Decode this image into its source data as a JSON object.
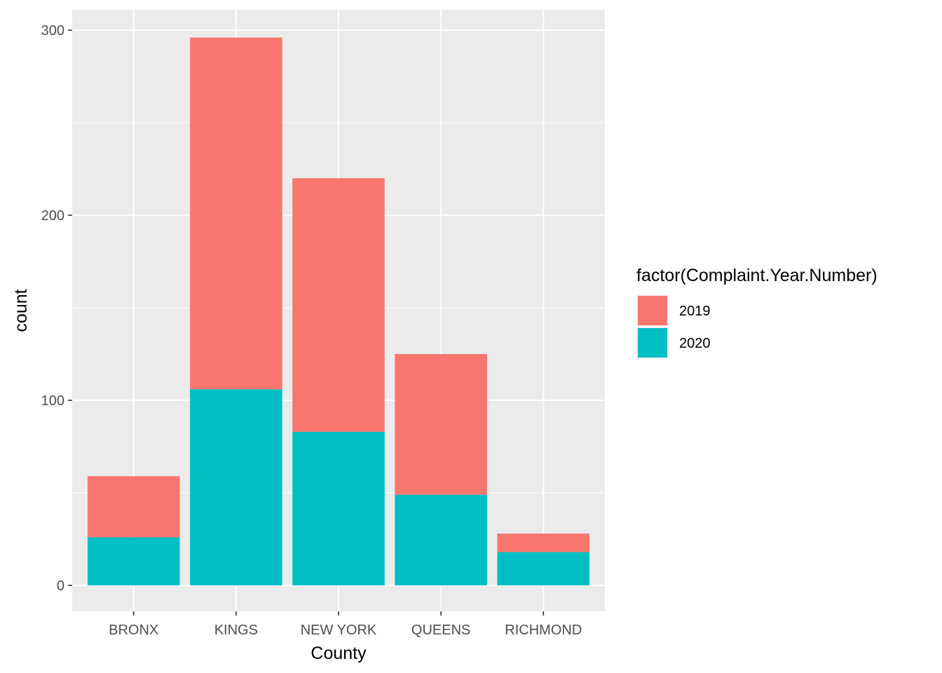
{
  "chart_data": {
    "type": "bar",
    "stacked": true,
    "categories": [
      "BRONX",
      "KINGS",
      "NEW YORK",
      "QUEENS",
      "RICHMOND"
    ],
    "series": [
      {
        "name": "2020",
        "values": [
          26,
          106,
          83,
          49,
          18
        ],
        "color": "#00BFC4"
      },
      {
        "name": "2019",
        "values": [
          33,
          190,
          137,
          76,
          10
        ],
        "color": "#F8766D"
      }
    ],
    "xlabel": "County",
    "ylabel": "count",
    "ylim": [
      -14,
      311
    ],
    "yticks": [
      0,
      100,
      200,
      300
    ],
    "legend": {
      "title": "factor(Complaint.Year.Number)",
      "position": "right",
      "order": [
        "2019",
        "2020"
      ]
    },
    "panel_background": "#EBEBEB",
    "grid": true
  }
}
